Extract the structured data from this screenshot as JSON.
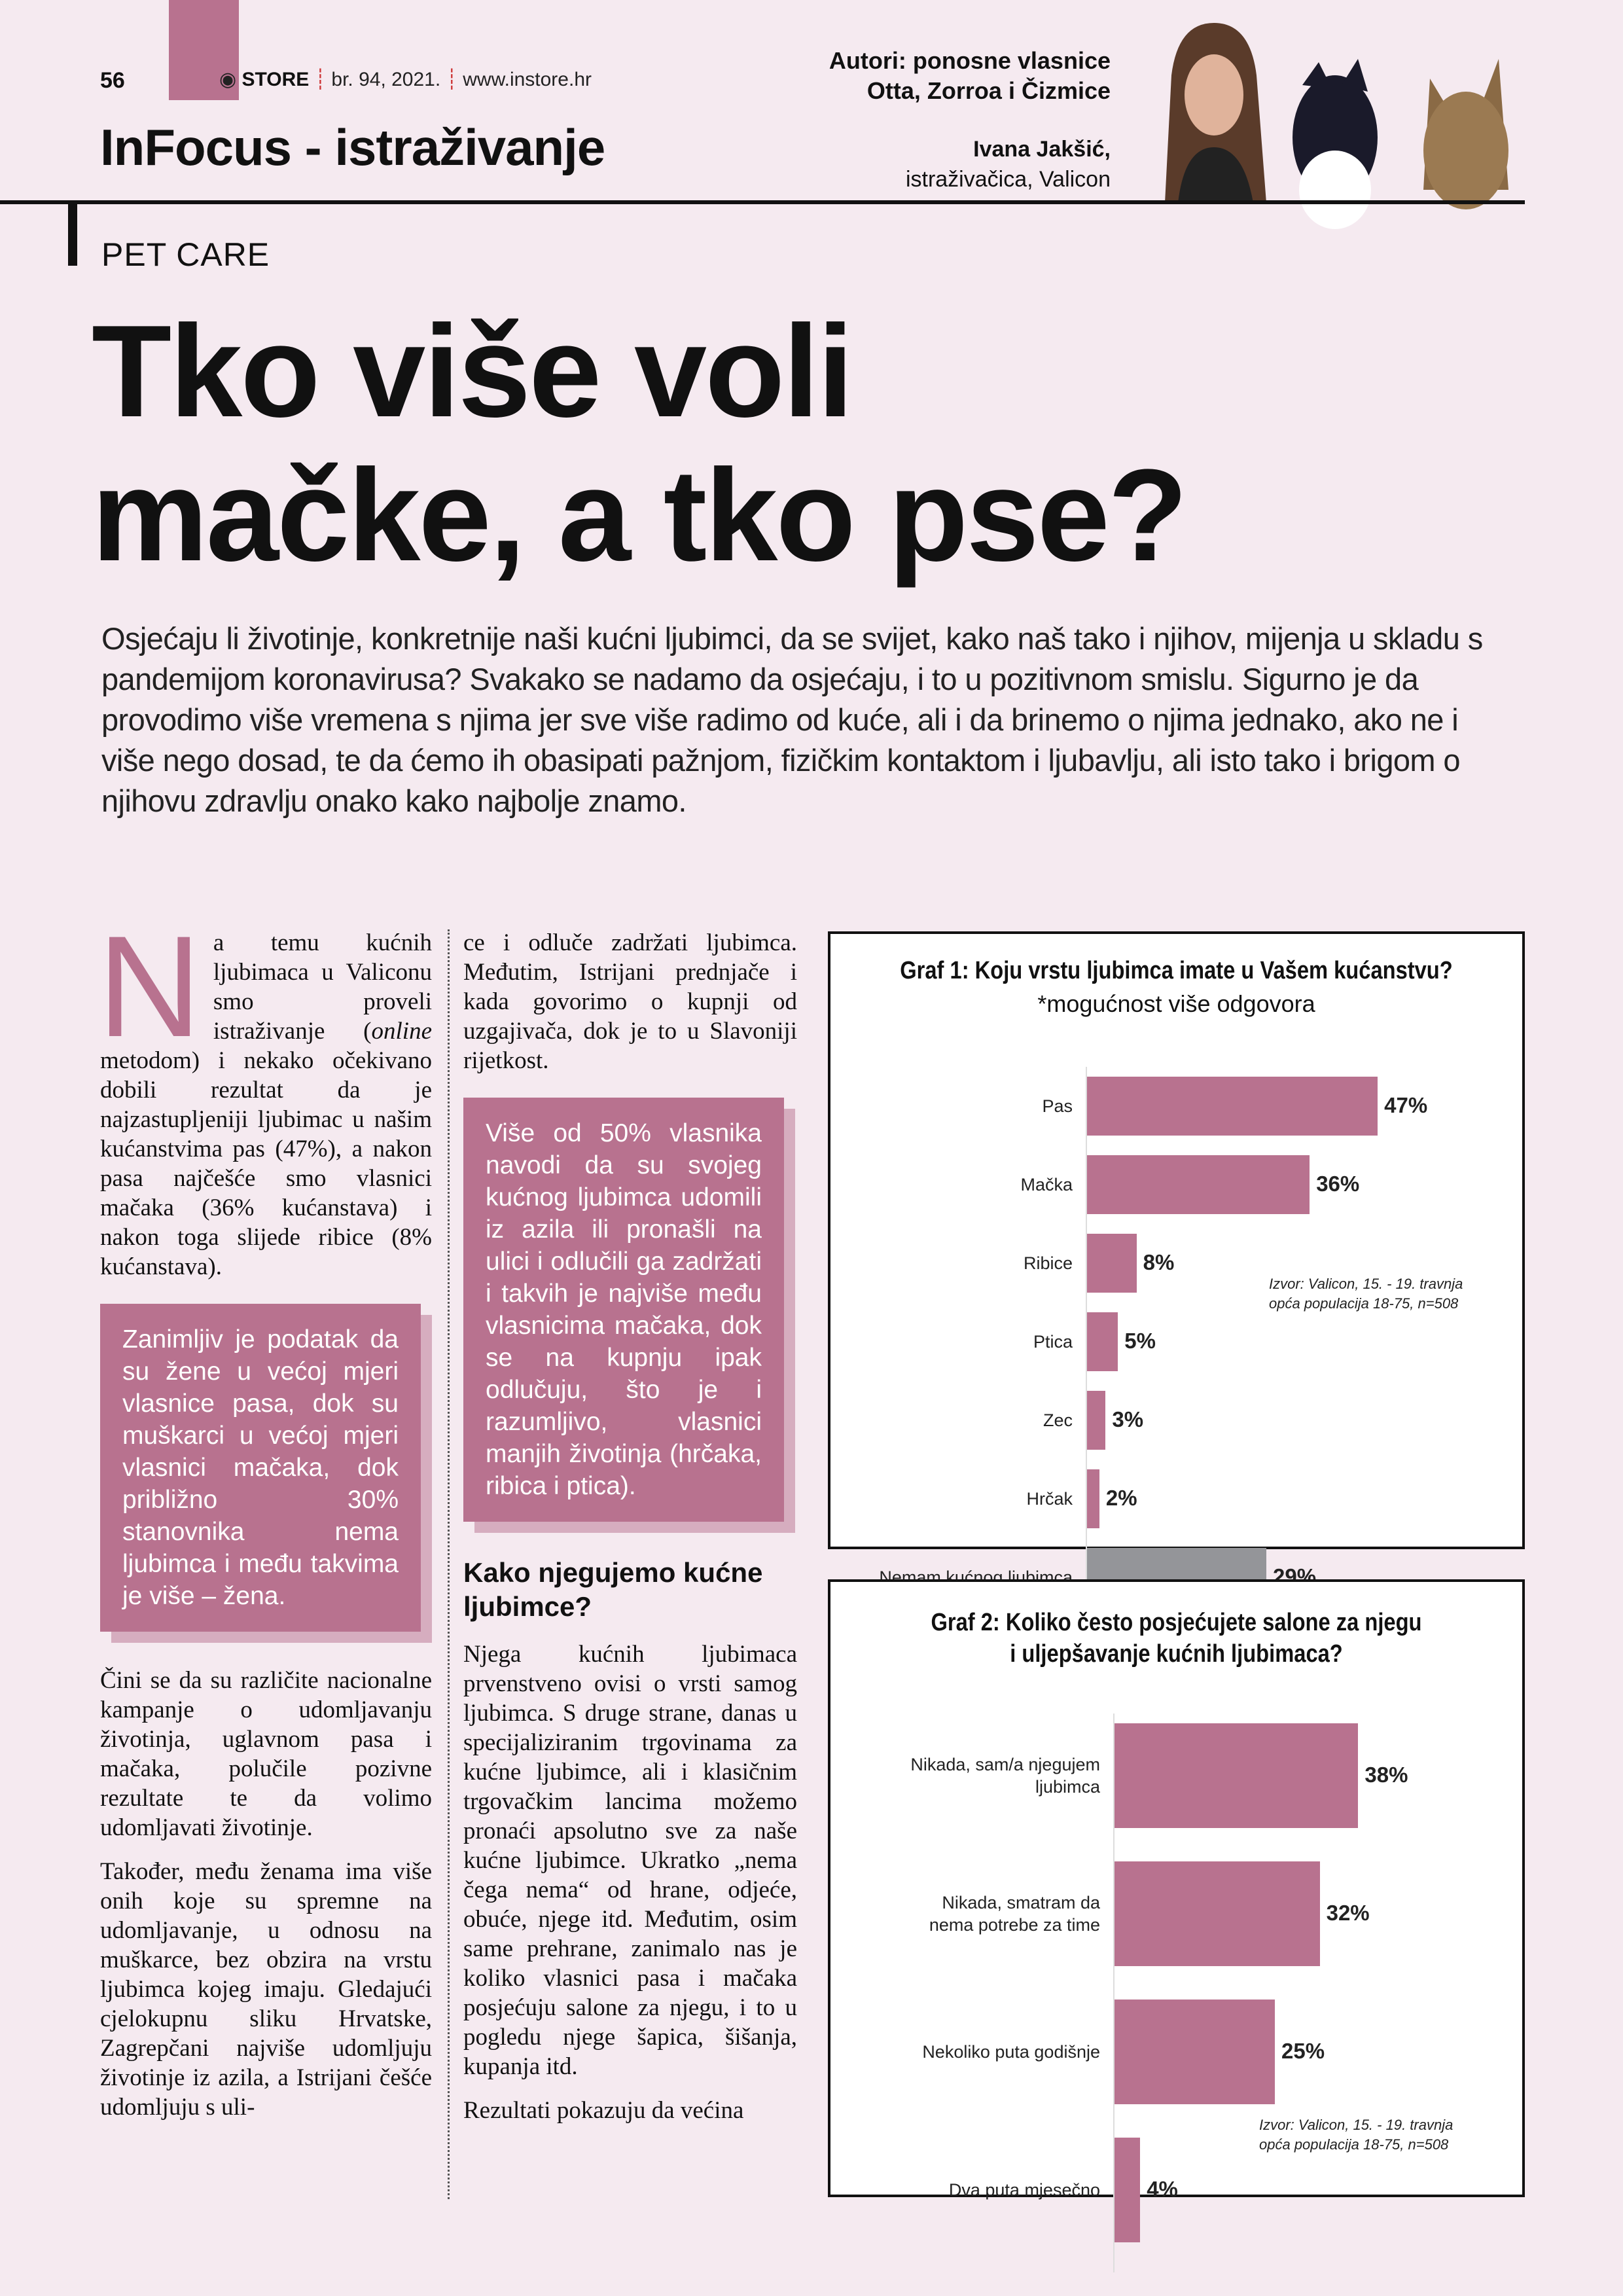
{
  "header": {
    "page_number": "56",
    "brand": "STORE",
    "issue": "br. 94, 2021.",
    "website": "www.instore.hr",
    "section": "InFocus - istraživanje",
    "authors_line1": "Autori: ponosne vlasnice",
    "authors_line2": "Otta, Zorroa i Čizmice",
    "researcher_name": "Ivana Jakšić,",
    "researcher_role": "istraživačica, Valicon"
  },
  "colors": {
    "accent": "#b8728f",
    "background": "#f5eaf0",
    "grey_bar": "#949599"
  },
  "kicker": "PET CARE",
  "title_line1": "Tko više voli",
  "title_line2": "mačke, a tko pse?",
  "intro": "Osjećaju li životinje, konkretnije naši kućni ljubimci, da se svijet, kako naš tako i njihov, mijenja u skladu s pandemijom koronavirusa? Svakako se nadamo da osjećaju, i to u pozitivnom smislu. Sigurno je da provodimo više vremena s njima jer sve više radimo od kuće, ali i da brinemo o njima jednako, ako ne i više nego dosad, te da ćemo ih obasipati pažnjom, fizičkim kontaktom i ljubavlju, ali isto tako i brigom o njihovu zdravlju onako kako najbolje znamo.",
  "col1": {
    "drop_cap": "N",
    "p1_start": "a temu kućnih ljubimaca u Valiconu smo proveli istraživanje (",
    "p1_italic": "online",
    "p1_end": " metodom) i nekako očekivano dobili rezultat da je najzastupljeniji ljubimac u našim kućanstvima pas (47%), a nakon pasa najčešće smo vlasnici mačaka (36% kućanstava) i nakon toga slijede ribice (8% kućanstava).",
    "p2": "Čini se da su različite nacionalne kampanje o udomljavanju životinja, uglavnom pasa i mačaka, polučile pozivne rezultate te da volimo udomljavati životinje.",
    "p3": "Također, među ženama ima više onih koje su spremne na udomljavanje, u odnosu na muškarce, bez obzira na vrstu ljubimca kojeg imaju. Gledajući cjelokupnu sliku Hrvatske, Zagrepčani najviše udomljuju životinje iz azila, a Istrijani češće udomljuju s uli-"
  },
  "box1": "Zanimljiv je podatak da su žene u većoj mjeri vlasnice pasa, dok su muškarci u većoj mjeri vlasnici mačaka, dok približno 30% stanovnika nema ljubimca i među takvima je više – žena.",
  "col2": {
    "p1": "ce i odluče zadržati ljubimca. Međutim, Istrijani prednjače i kada govorimo o kupnji od uzgajivača, dok je to u Slavoniji rijetkost.",
    "heading": "Kako njegujemo kućne ljubimce?",
    "p2": "Njega kućnih ljubimaca prvenstveno ovisi o vrsti samog ljubimca. S druge strane, danas u specijaliziranim trgovinama za kućne ljubimce, ali i klasičnim trgovačkim lancima možemo pronaći apsolutno sve za naše kućne ljubimce. Ukratko „nema čega nema“ od hrane, odjeće, obuće, njege itd. Međutim, osim same prehrane, zanimalo nas je koliko vlasnici pasa i mačaka posjećuju salone za njegu, i to u pogledu njege šapica, šišanja, kupanja itd.",
    "p3": "Rezultati pokazuju da većina"
  },
  "box2": "Više od 50% vlasnika navodi da su svojeg kućnog ljubimca udomili iz azila ili pronašli na ulici i odlučili ga zadržati i takvih je najviše među vlasnicima mačaka, dok se na kupnju ipak odlučuju, što je i razumljivo, vlasnici manjih životinja (hrčaka, ribica i ptica).",
  "chart_data": [
    {
      "type": "bar",
      "orientation": "horizontal",
      "title": "Graf 1: Koju vrstu ljubimca imate u Vašem kućanstvu?",
      "subtitle": "*mogućnost više odgovora",
      "categories": [
        "Pas",
        "Mačka",
        "Ribice",
        "Ptica",
        "Zec",
        "Hrčak",
        "Nemam kućnog ljubimca"
      ],
      "values": [
        47,
        36,
        8,
        5,
        3,
        2,
        29
      ],
      "labels": [
        "47%",
        "36%",
        "8%",
        "5%",
        "3%",
        "2%",
        "29%"
      ],
      "bar_colors": [
        "#b8728f",
        "#b8728f",
        "#b8728f",
        "#b8728f",
        "#b8728f",
        "#b8728f",
        "#949599"
      ],
      "source_line1": "Izvor: Valicon, 15. - 19. travnja",
      "source_line2": "opća populacija 18-75, n=508",
      "grid": false
    },
    {
      "type": "bar",
      "orientation": "horizontal",
      "title_line1": "Graf 2: Koliko često posjećujete salone za njegu",
      "title_line2": "i uljepšavanje kućnih ljubimaca?",
      "categories": [
        [
          "Nikada, sam/a njegujem",
          "ljubimca"
        ],
        [
          "Nikada, smatram da",
          "nema potrebe za time"
        ],
        [
          "Nekoliko puta godišnje"
        ],
        [
          "Dva puta mjesečno"
        ]
      ],
      "values": [
        38,
        32,
        25,
        4
      ],
      "labels": [
        "38%",
        "32%",
        "25%",
        "4%"
      ],
      "bar_colors": [
        "#b8728f",
        "#b8728f",
        "#b8728f",
        "#b8728f"
      ],
      "source_line1": "Izvor: Valicon, 15. - 19. travnja",
      "source_line2": "opća populacija 18-75, n=508",
      "grid": false
    }
  ]
}
